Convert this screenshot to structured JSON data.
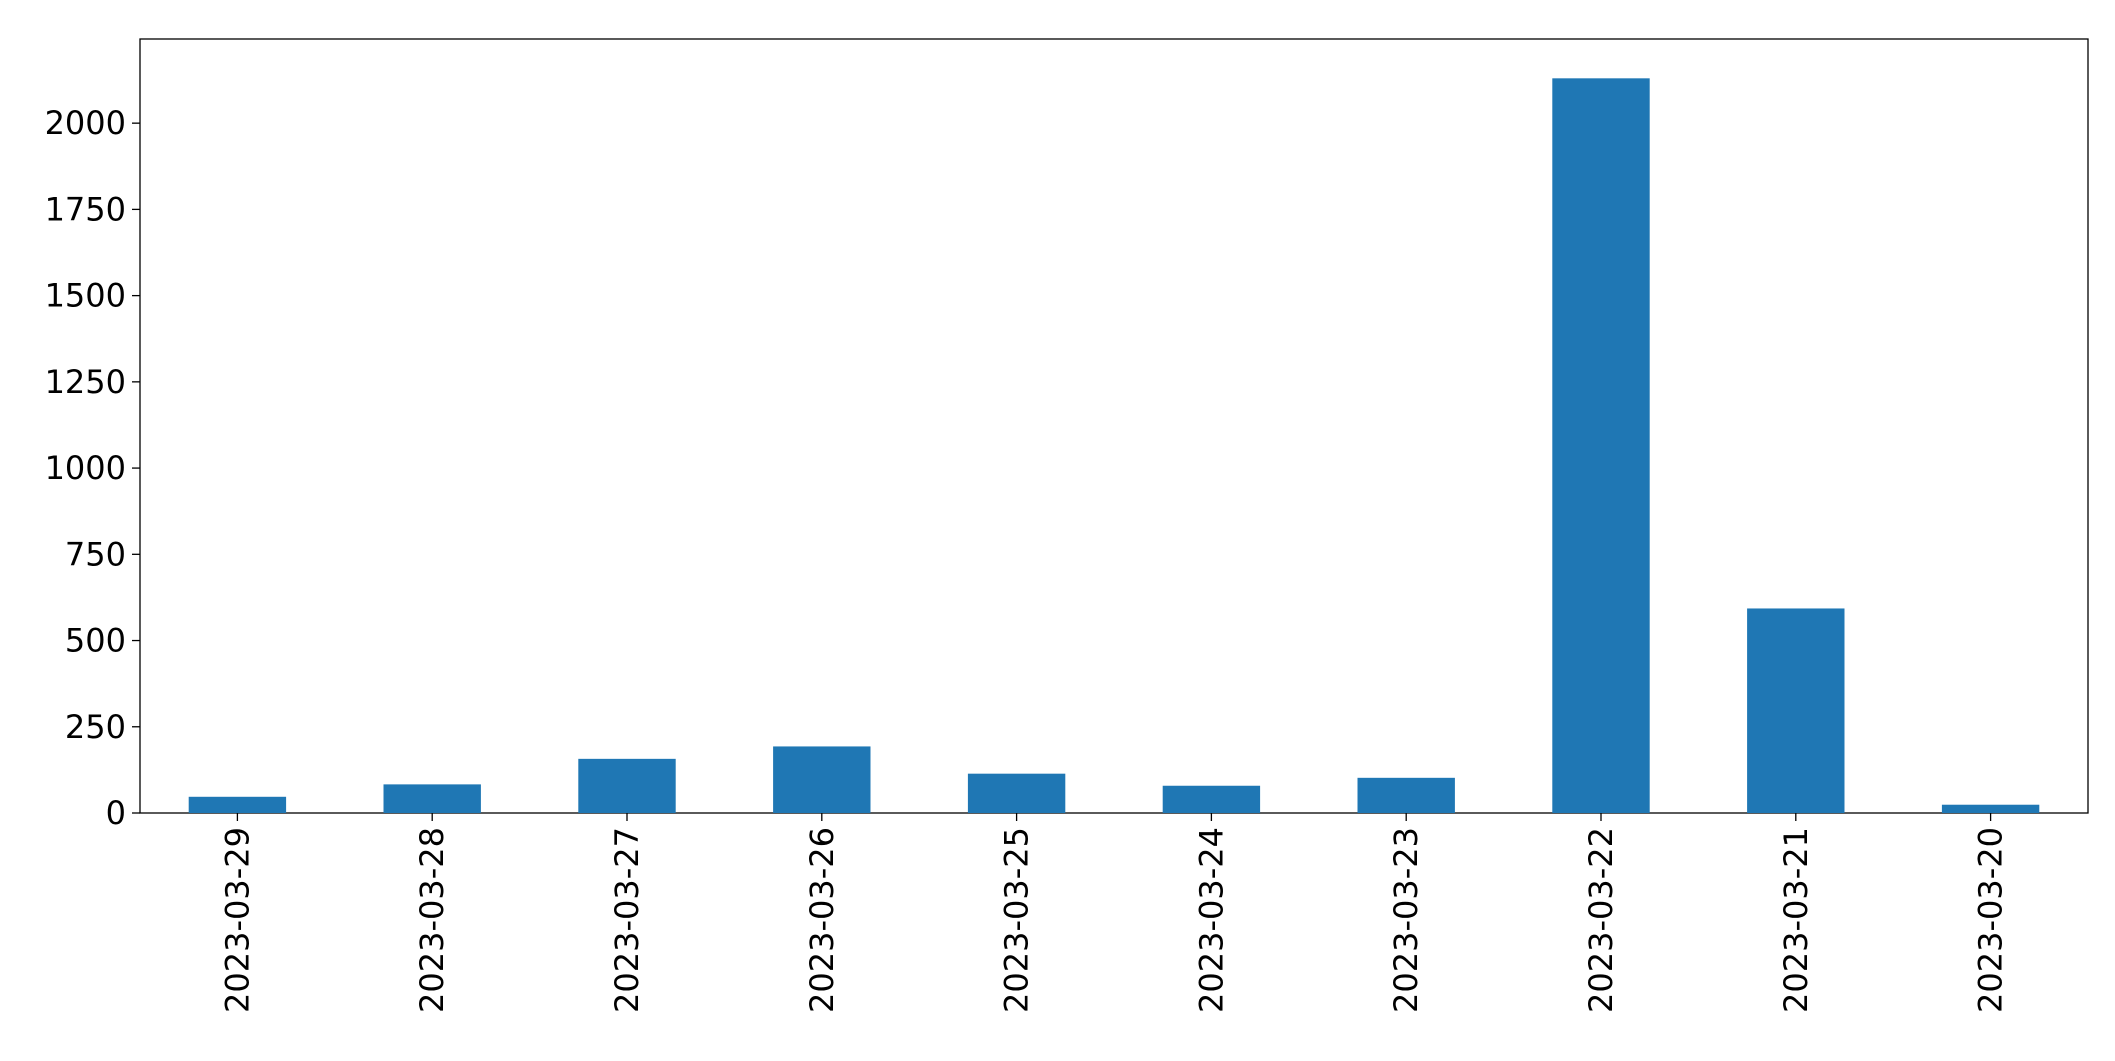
{
  "chart_data": {
    "type": "bar",
    "categories": [
      "2023-03-29",
      "2023-03-28",
      "2023-03-27",
      "2023-03-26",
      "2023-03-25",
      "2023-03-24",
      "2023-03-23",
      "2023-03-22",
      "2023-03-21",
      "2023-03-20"
    ],
    "values": [
      47,
      83,
      157,
      193,
      114,
      79,
      102,
      2130,
      593,
      24
    ],
    "color": "#1f77b4",
    "ylim": [
      0,
      2244
    ],
    "yticks": [
      0,
      250,
      500,
      750,
      1000,
      1250,
      1500,
      1750,
      2000
    ],
    "grid": false
  }
}
